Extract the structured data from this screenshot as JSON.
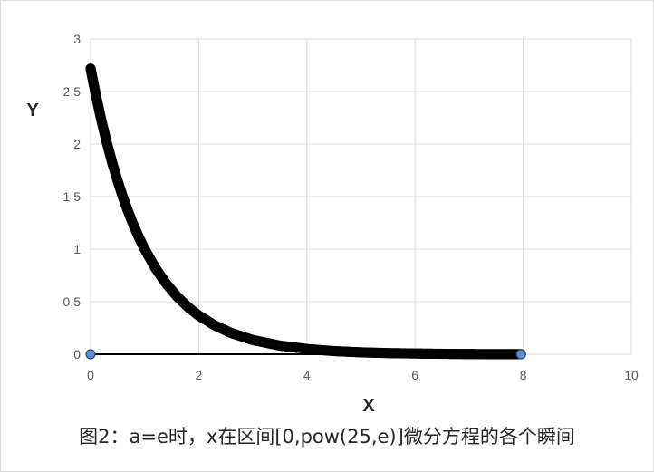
{
  "chart_data": {
    "type": "scatter",
    "title": "",
    "xlabel": "X",
    "ylabel": "Y",
    "xlim": [
      0,
      10
    ],
    "ylim": [
      0,
      3
    ],
    "x_ticks": [
      "0",
      "2",
      "4",
      "6",
      "8",
      "10"
    ],
    "y_ticks": [
      "0",
      "0.5",
      "1",
      "1.5",
      "2",
      "2.5",
      "3"
    ],
    "grid": true,
    "legend": "none",
    "series": [
      {
        "color": "#000000",
        "marker": "circle",
        "x": [
          0,
          0.1,
          0.2,
          0.3,
          0.4,
          0.5,
          0.6,
          0.7,
          0.8,
          0.9,
          1.0,
          1.2,
          1.4,
          1.6,
          1.8,
          2.0,
          2.3,
          2.6,
          3.0,
          3.5,
          4.0,
          4.5,
          5.0,
          5.5,
          6.0,
          6.5,
          7.0,
          7.5,
          7.96
        ],
        "y": [
          2.718,
          2.46,
          2.225,
          2.014,
          1.822,
          1.649,
          1.492,
          1.35,
          1.221,
          1.105,
          1.0,
          0.819,
          0.67,
          0.549,
          0.449,
          0.368,
          0.273,
          0.202,
          0.135,
          0.082,
          0.05,
          0.03,
          0.018,
          0.011,
          0.007,
          0.004,
          0.002,
          0.001,
          0.001
        ]
      },
      {
        "color": "#5b8fd4",
        "marker": "circle",
        "x": [
          0,
          7.96
        ],
        "y": [
          0,
          0
        ]
      }
    ]
  },
  "caption": "图2：a=e时，x在区间[0,pow(25,e)]微分方程的各个瞬间"
}
